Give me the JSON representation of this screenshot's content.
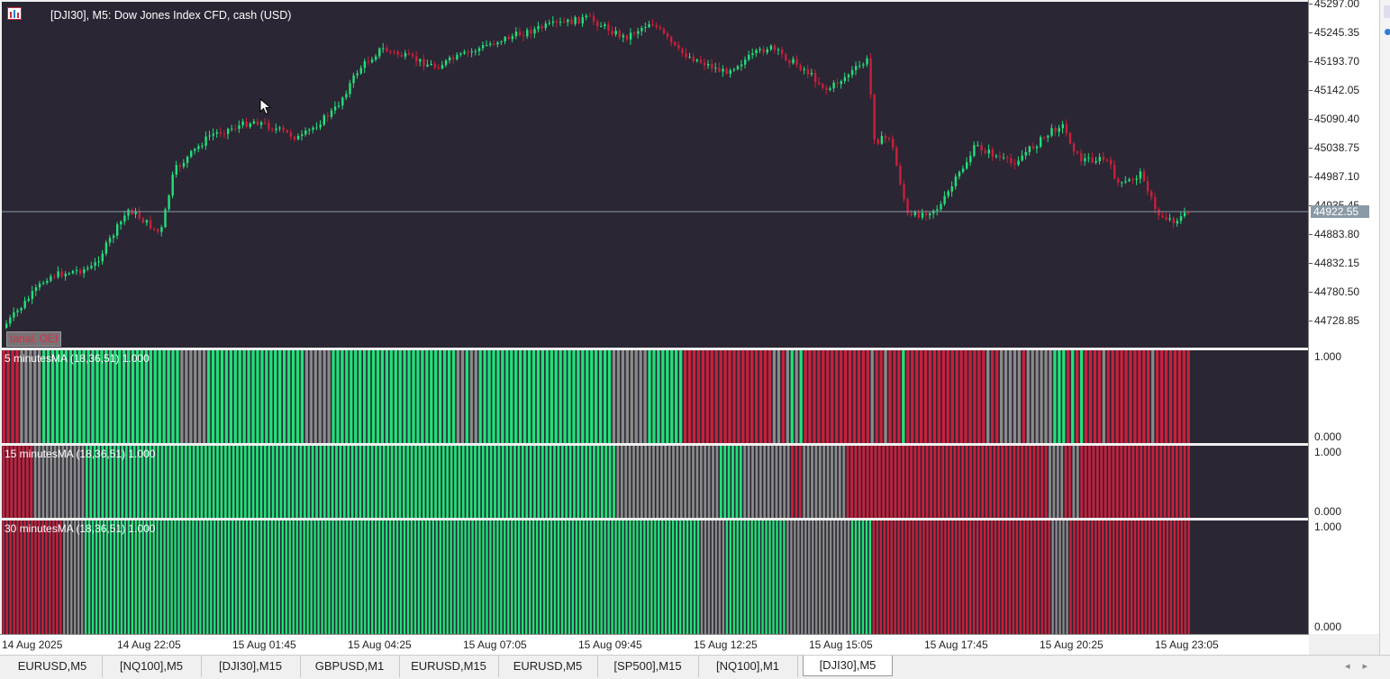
{
  "chart": {
    "title": "[DJI30], M5:  Dow Jones Index CFD, cash (USD)",
    "current_price": "44922.55",
    "trade_label": "tanal. OEI",
    "price_labels": [
      "45297.00",
      "45245.35",
      "45193.70",
      "45142.05",
      "45090.40",
      "45038.75",
      "44987.10",
      "44935.45",
      "44883.80",
      "44832.15",
      "44780.50",
      "44728.85"
    ],
    "colors": {
      "background": "#2a2633",
      "bull": "#22e07a",
      "bear": "#c8203c",
      "neutral": "#8a8a8a",
      "price_line": "#8a9aa6"
    }
  },
  "indicators": [
    {
      "title": "5 minutesMA  (18,36,51) 1.000",
      "max_label": "1.000",
      "min_label": "0.000",
      "segments": [
        [
          "r",
          4
        ],
        [
          "g",
          5
        ],
        [
          "G",
          31
        ],
        [
          "g",
          6
        ],
        [
          "G",
          22
        ],
        [
          "g",
          6
        ],
        [
          "G",
          28
        ],
        [
          "g",
          2
        ],
        [
          "G",
          1
        ],
        [
          "g",
          2
        ],
        [
          "G",
          30
        ],
        [
          "g",
          8
        ],
        [
          "G",
          8
        ],
        [
          "r",
          20
        ],
        [
          "g",
          2
        ],
        [
          "r",
          1
        ],
        [
          "g",
          1
        ],
        [
          "G",
          1
        ],
        [
          "g",
          1
        ],
        [
          "G",
          1
        ],
        [
          "r",
          15
        ],
        [
          "g",
          1
        ],
        [
          "r",
          2
        ],
        [
          "g",
          1
        ],
        [
          "r",
          3
        ],
        [
          "G",
          1
        ],
        [
          "r",
          18
        ],
        [
          "g",
          1
        ],
        [
          "r",
          2
        ],
        [
          "g",
          5
        ],
        [
          "r",
          1
        ],
        [
          "g",
          6
        ],
        [
          "G",
          3
        ],
        [
          "r",
          1
        ],
        [
          "G",
          1
        ],
        [
          "r",
          1
        ],
        [
          "G",
          1
        ],
        [
          "r",
          4
        ],
        [
          "g",
          1
        ],
        [
          "r",
          3
        ],
        [
          "r",
          7
        ],
        [
          "g",
          1
        ],
        [
          "r",
          8
        ]
      ]
    },
    {
      "title": "15 minutesMA  (18,36,51) 1.000",
      "max_label": "1.000",
      "min_label": "0.000",
      "segments": [
        [
          "r",
          8
        ],
        [
          "g",
          13
        ],
        [
          "G",
          134
        ],
        [
          "g",
          26
        ],
        [
          "G",
          6
        ],
        [
          "g",
          12
        ],
        [
          "r",
          3
        ],
        [
          "g",
          11
        ],
        [
          "r",
          51
        ],
        [
          "g",
          4
        ],
        [
          "r",
          2
        ],
        [
          "g",
          2
        ],
        [
          "r",
          28
        ]
      ]
    },
    {
      "title": "30 minutesMA  (18,36,51) 1.000",
      "max_label": "1.000",
      "min_label": "0.000",
      "segments": [
        [
          "r",
          17
        ],
        [
          "g",
          6
        ],
        [
          "G",
          172
        ],
        [
          "g",
          7
        ],
        [
          "G",
          17
        ],
        [
          "g",
          18
        ],
        [
          "G",
          6
        ],
        [
          "r",
          50
        ],
        [
          "g",
          5
        ],
        [
          "r",
          34
        ]
      ]
    }
  ],
  "time_labels": [
    "14 Aug 2025",
    "14 Aug 22:05",
    "15 Aug 01:45",
    "15 Aug 04:25",
    "15 Aug 07:05",
    "15 Aug 09:45",
    "15 Aug 12:25",
    "15 Aug 15:05",
    "15 Aug 17:45",
    "15 Aug 20:25",
    "15 Aug 23:05"
  ],
  "tabs": [
    {
      "label": "EURUSD,M5",
      "active": false
    },
    {
      "label": "[NQ100],M5",
      "active": false
    },
    {
      "label": "[DJI30],M15",
      "active": false
    },
    {
      "label": "GBPUSD,M1",
      "active": false
    },
    {
      "label": "EURUSD,M15",
      "active": false
    },
    {
      "label": "EURUSD,M5",
      "active": false
    },
    {
      "label": "[SP500],M15",
      "active": false
    },
    {
      "label": "[NQ100],M1",
      "active": false
    },
    {
      "label": "[DJI30],M5",
      "active": true
    }
  ],
  "tab_nav": {
    "prev_icon": "◂",
    "next_icon": "▸"
  }
}
